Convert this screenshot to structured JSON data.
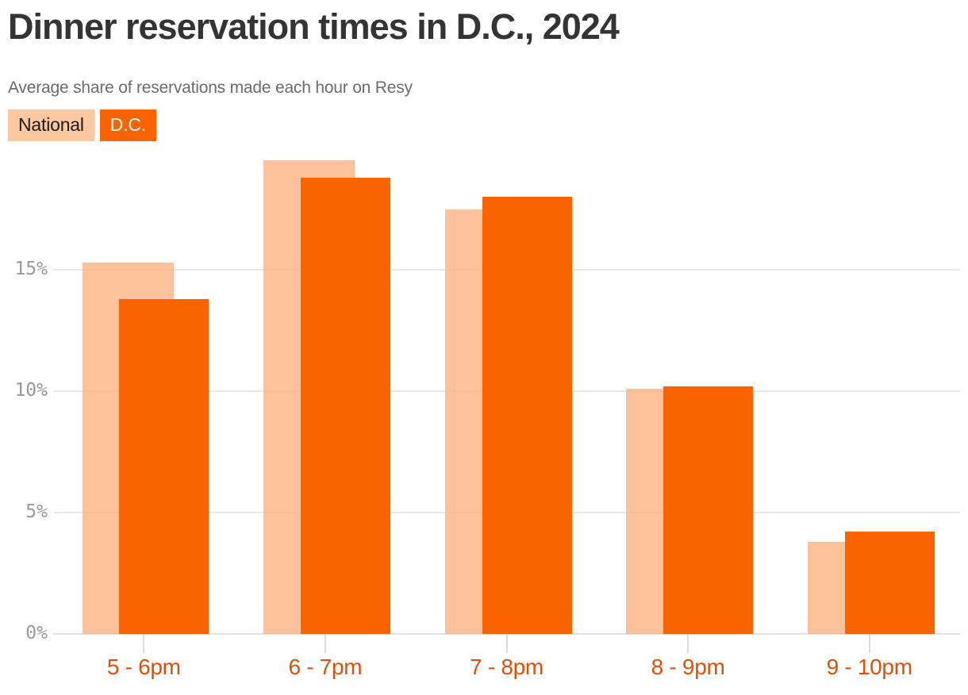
{
  "header": {
    "title": "Dinner reservation times in D.C., 2024",
    "subtitle": "Average share of reservations made each hour on Resy"
  },
  "legend": [
    {
      "label": "National",
      "color": "#fbc89f",
      "text_color": "#1a1a1a"
    },
    {
      "label": "D.C.",
      "color": "#fa6400",
      "text_color": "#ffffff"
    }
  ],
  "chart_data": {
    "type": "bar",
    "title": "Dinner reservation times in D.C., 2024",
    "subtitle": "Average share of reservations made each hour on Resy",
    "categories": [
      "5-6pm",
      "6-7pm",
      "7-8pm",
      "8-9pm",
      "9-10pm"
    ],
    "series": [
      {
        "name": "National",
        "color": "rgba(252,179,130,0.8)",
        "values": [
          15.3,
          19.5,
          17.5,
          10.1,
          3.8
        ]
      },
      {
        "name": "D.C.",
        "color": "#fa6400",
        "values": [
          13.8,
          18.8,
          18.0,
          10.2,
          4.2
        ]
      }
    ],
    "unit": "%",
    "xlabel": "",
    "ylabel": "",
    "yticks": [
      0,
      5,
      10,
      15
    ],
    "ytick_labels": [
      "0%",
      "5%",
      "10%",
      "15%"
    ],
    "ylim": [
      0,
      20
    ],
    "grid": "horizontal",
    "legend_position": "top-left",
    "colors": {
      "grid": "#e8e8e8",
      "baseline": "#e0e0e0",
      "y_label": "#999999",
      "x_label": "#df4f08",
      "title": "#353434",
      "subtitle": "#6b6b6b"
    }
  }
}
